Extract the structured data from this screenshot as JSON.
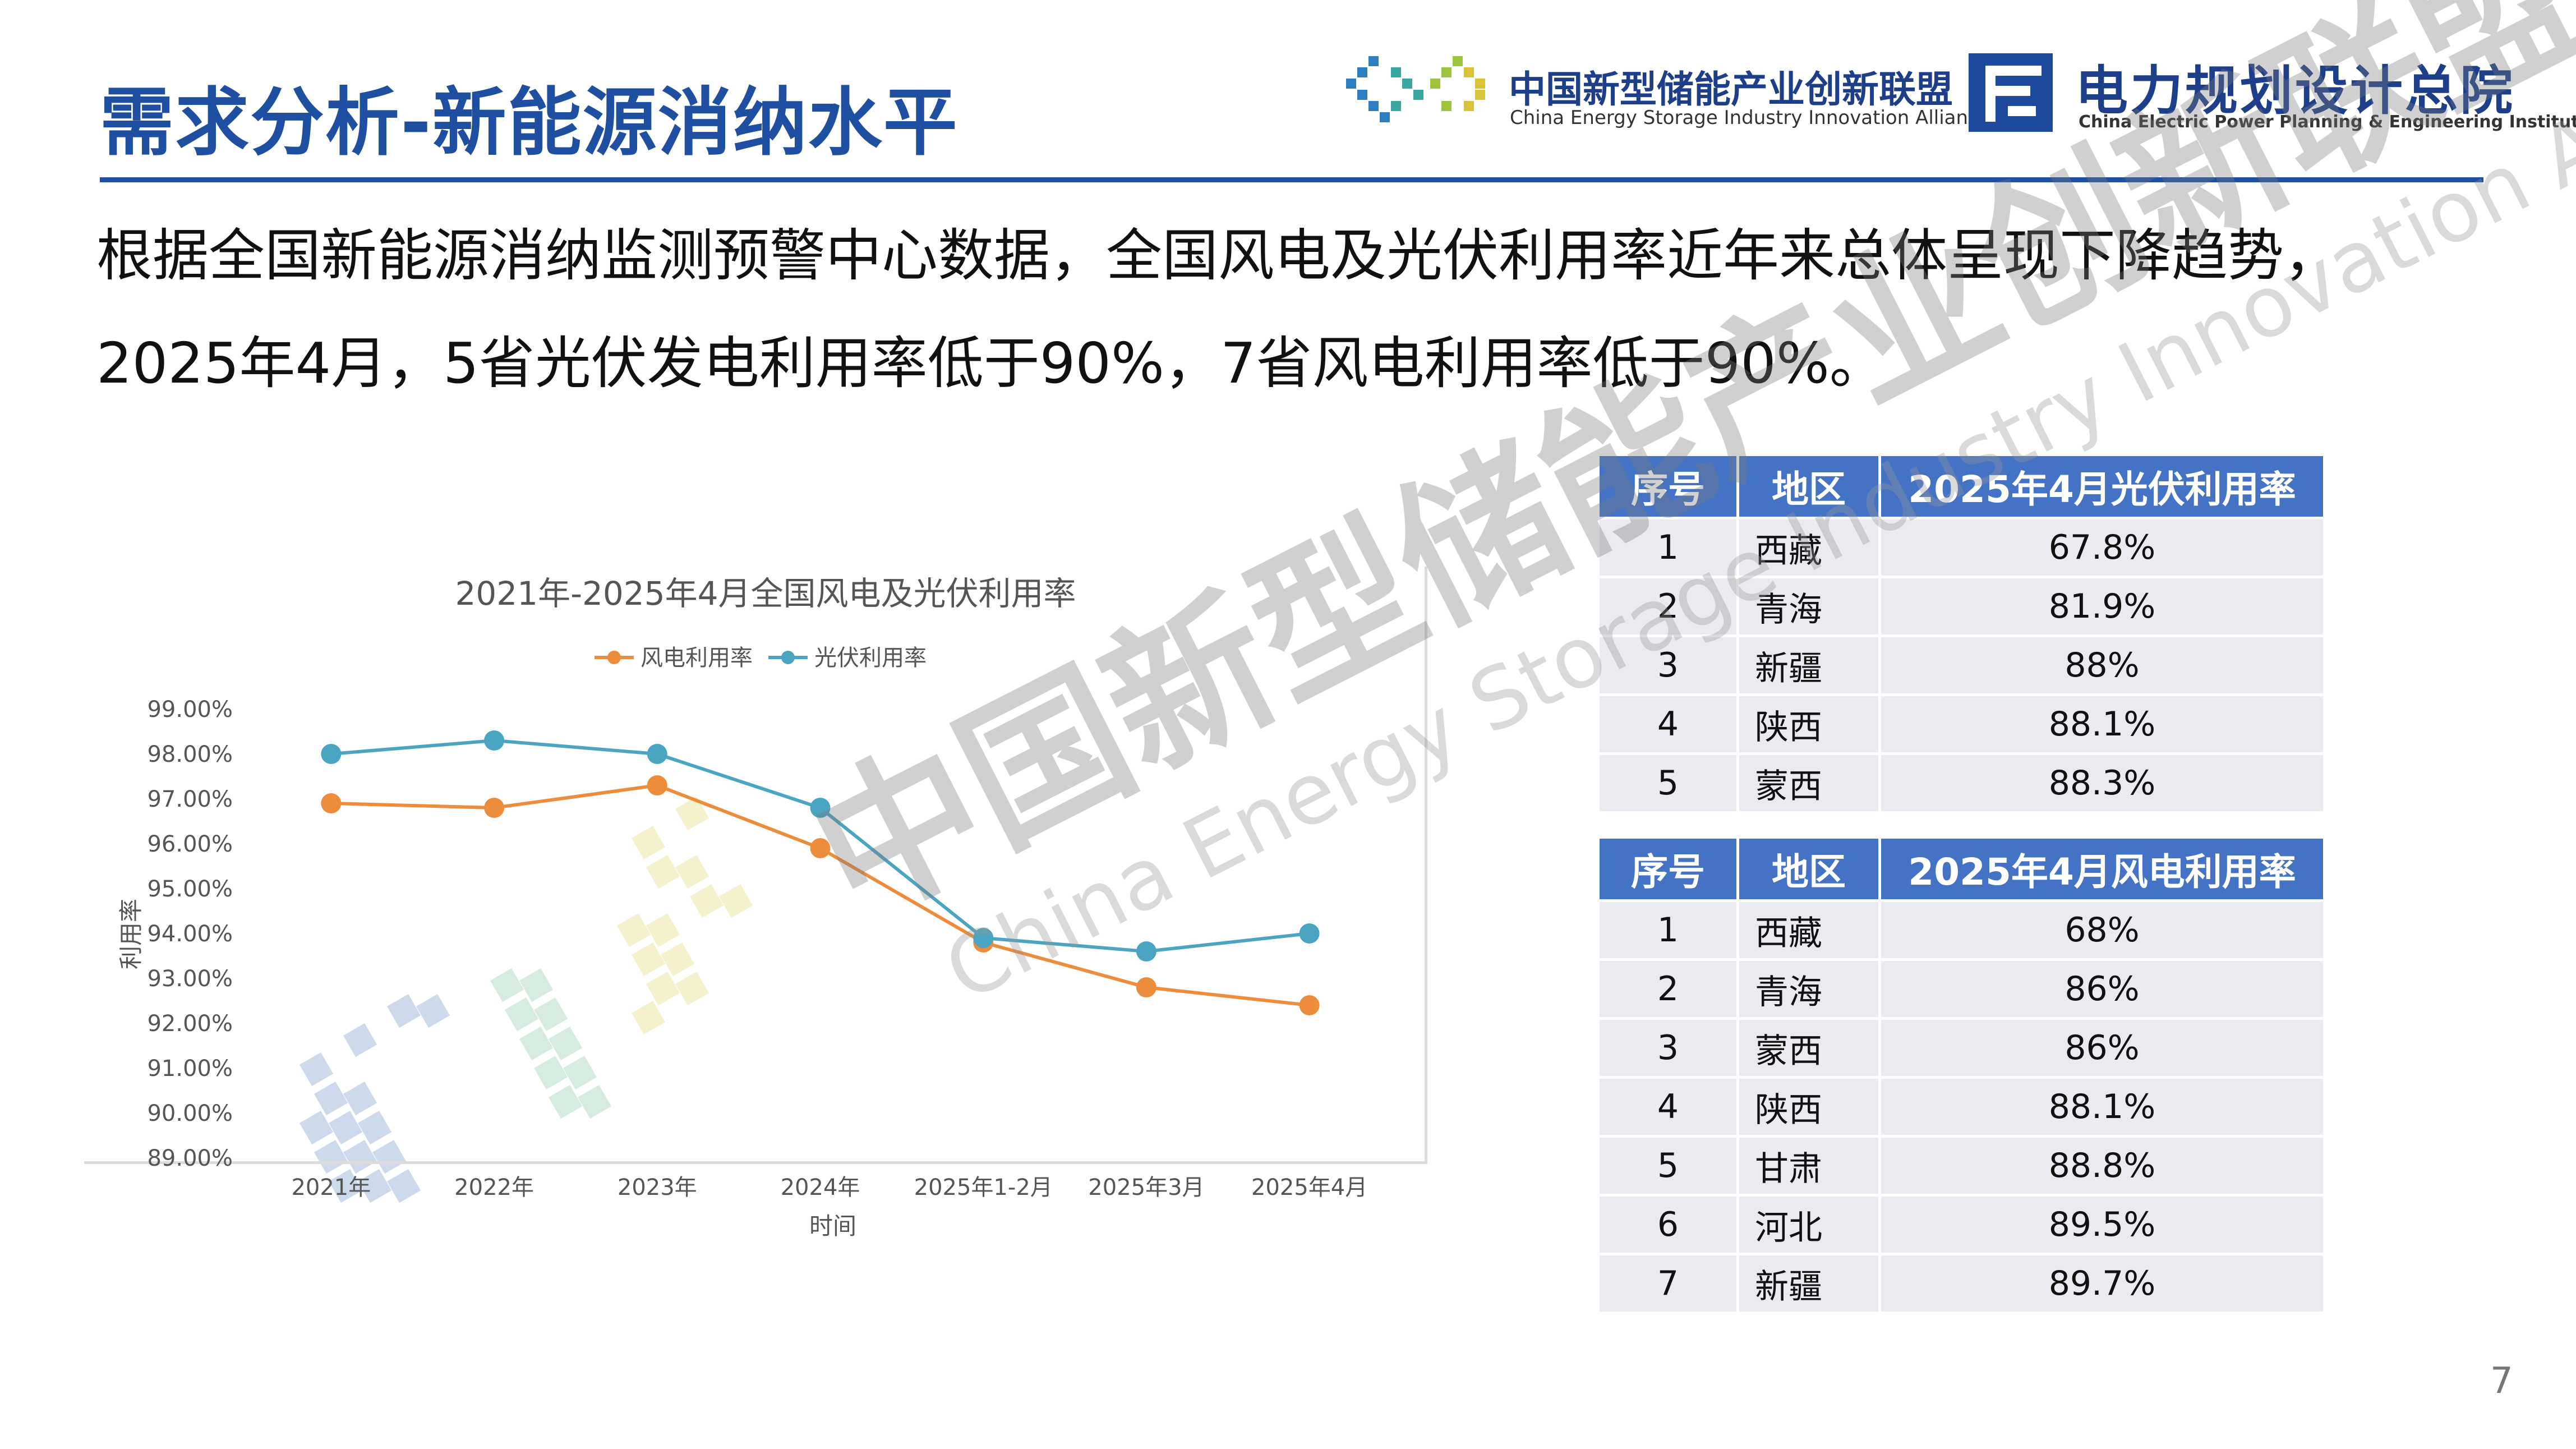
{
  "slide": {
    "title": "需求分析-新能源消纳水平",
    "intro_lines": [
      "根据全国新能源消纳监测预警中心数据，全国风电及光伏利用率近年来总体呈现下降趋势，",
      "2025年4月，5省光伏发电利用率低于90%，7省风电利用率低于90%。"
    ],
    "page_number": "7"
  },
  "logos": {
    "alliance_cn": "中国新型储能产业创新联盟",
    "alliance_en": "China Energy Storage Industry Innovation Alliance",
    "institute_cn": "电力规划设计总院",
    "institute_en": "China Electric Power Planning & Engineering Institute"
  },
  "watermark": {
    "cn": "中国新型储能产业创新联盟",
    "en": "China Energy Storage Industry Innovation Alliance"
  },
  "chart_data": {
    "type": "line",
    "title": "2021年-2025年4月全国风电及光伏利用率",
    "xlabel": "时间",
    "ylabel": "利用率",
    "categories": [
      "2021年",
      "2022年",
      "2023年",
      "2024年",
      "2025年1-2月",
      "2025年3月",
      "2025年4月"
    ],
    "series": [
      {
        "name": "风电利用率",
        "color": "#ed8d3b",
        "values": [
          96.9,
          96.8,
          97.3,
          95.9,
          93.8,
          92.8,
          92.4
        ]
      },
      {
        "name": "光伏利用率",
        "color": "#4aa5c2",
        "values": [
          98.0,
          98.3,
          98.0,
          96.8,
          93.9,
          93.6,
          94.0
        ]
      }
    ],
    "ylim": [
      89,
      99
    ],
    "yticks": [
      "89.00%",
      "90.00%",
      "91.00%",
      "92.00%",
      "93.00%",
      "94.00%",
      "95.00%",
      "96.00%",
      "97.00%",
      "98.00%",
      "99.00%"
    ],
    "grid": false,
    "legend": "top-center"
  },
  "pv_table": {
    "headers": [
      "序号",
      "地区",
      "2025年4月光伏利用率"
    ],
    "rows": [
      [
        "1",
        "西藏",
        "67.8%"
      ],
      [
        "2",
        "青海",
        "81.9%"
      ],
      [
        "3",
        "新疆",
        "88%"
      ],
      [
        "4",
        "陕西",
        "88.1%"
      ],
      [
        "5",
        "蒙西",
        "88.3%"
      ]
    ]
  },
  "wind_table": {
    "headers": [
      "序号",
      "地区",
      "2025年4月风电利用率"
    ],
    "rows": [
      [
        "1",
        "西藏",
        "68%"
      ],
      [
        "2",
        "青海",
        "86%"
      ],
      [
        "3",
        "蒙西",
        "86%"
      ],
      [
        "4",
        "陕西",
        "88.1%"
      ],
      [
        "5",
        "甘肃",
        "88.8%"
      ],
      [
        "6",
        "河北",
        "89.5%"
      ],
      [
        "7",
        "新疆",
        "89.7%"
      ]
    ]
  },
  "colors": {
    "title_blue": "#1f4fa0",
    "header_blue": "#4473c5",
    "row_gray": "#e9ebf0"
  }
}
